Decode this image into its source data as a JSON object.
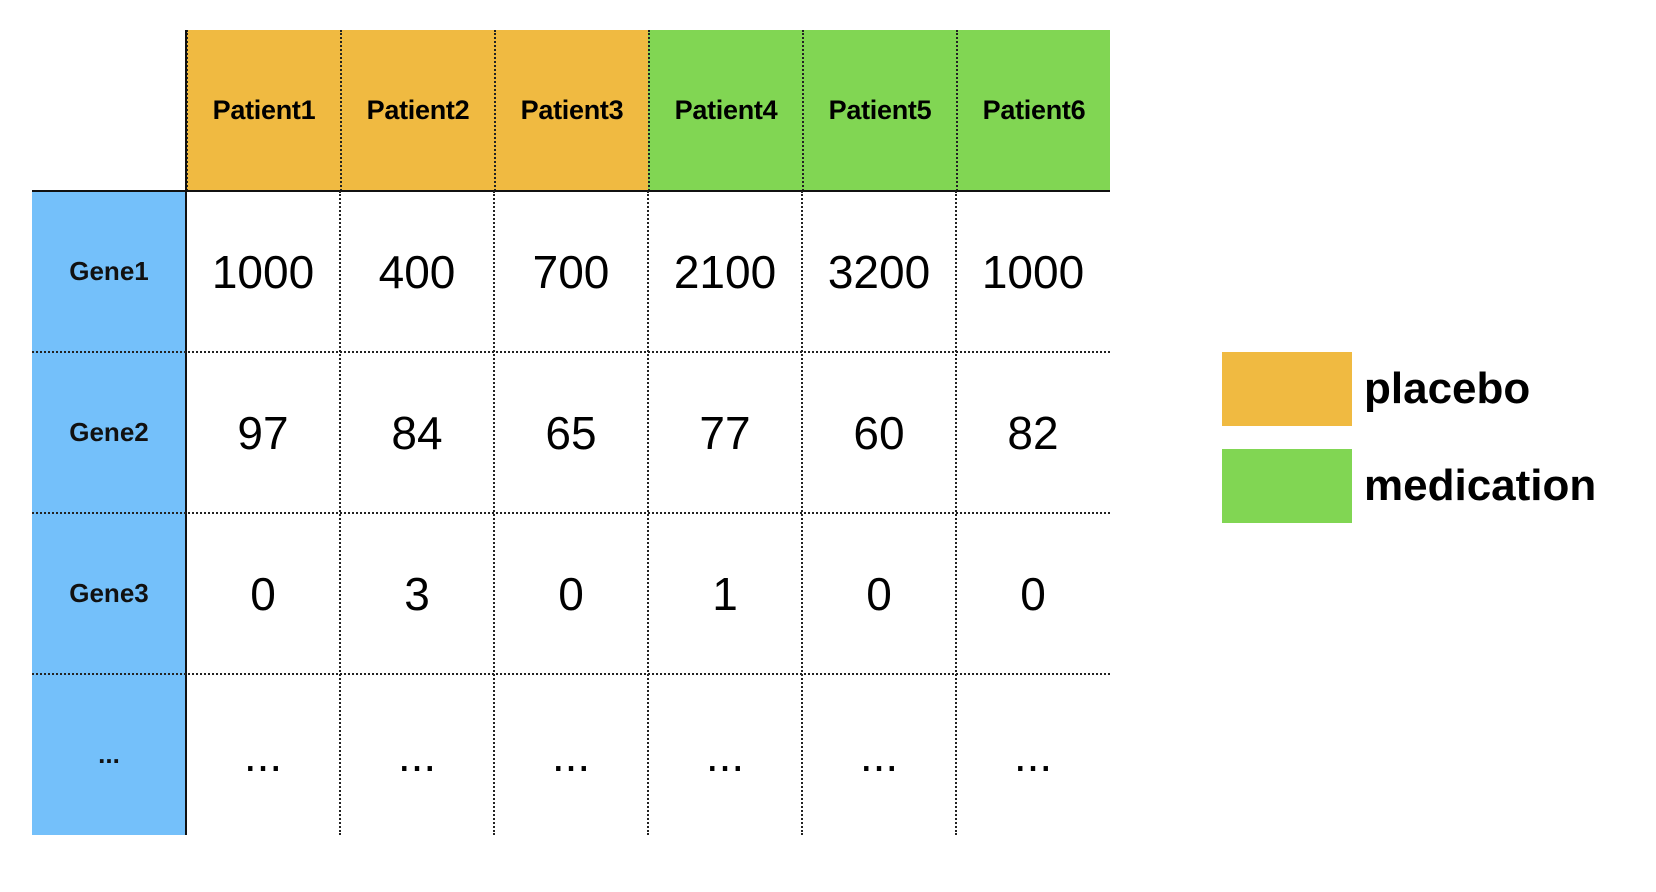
{
  "colors": {
    "placebo": "#F0BA41",
    "medication": "#81D653",
    "gene_header": "#74C0FA"
  },
  "columns": [
    {
      "label": "Patient1",
      "group": "placebo"
    },
    {
      "label": "Patient2",
      "group": "placebo"
    },
    {
      "label": "Patient3",
      "group": "placebo"
    },
    {
      "label": "Patient4",
      "group": "medication"
    },
    {
      "label": "Patient5",
      "group": "medication"
    },
    {
      "label": "Patient6",
      "group": "medication"
    }
  ],
  "rows": [
    {
      "label": "Gene1",
      "values": [
        "1000",
        "400",
        "700",
        "2100",
        "3200",
        "1000"
      ]
    },
    {
      "label": "Gene2",
      "values": [
        "97",
        "84",
        "65",
        "77",
        "60",
        "82"
      ]
    },
    {
      "label": "Gene3",
      "values": [
        "0",
        "3",
        "0",
        "1",
        "0",
        "0"
      ]
    },
    {
      "label": "...",
      "values": [
        "...",
        "...",
        "...",
        "...",
        "...",
        "..."
      ]
    }
  ],
  "legend": [
    {
      "label": "placebo",
      "group": "placebo"
    },
    {
      "label": "medication",
      "group": "medication"
    }
  ]
}
